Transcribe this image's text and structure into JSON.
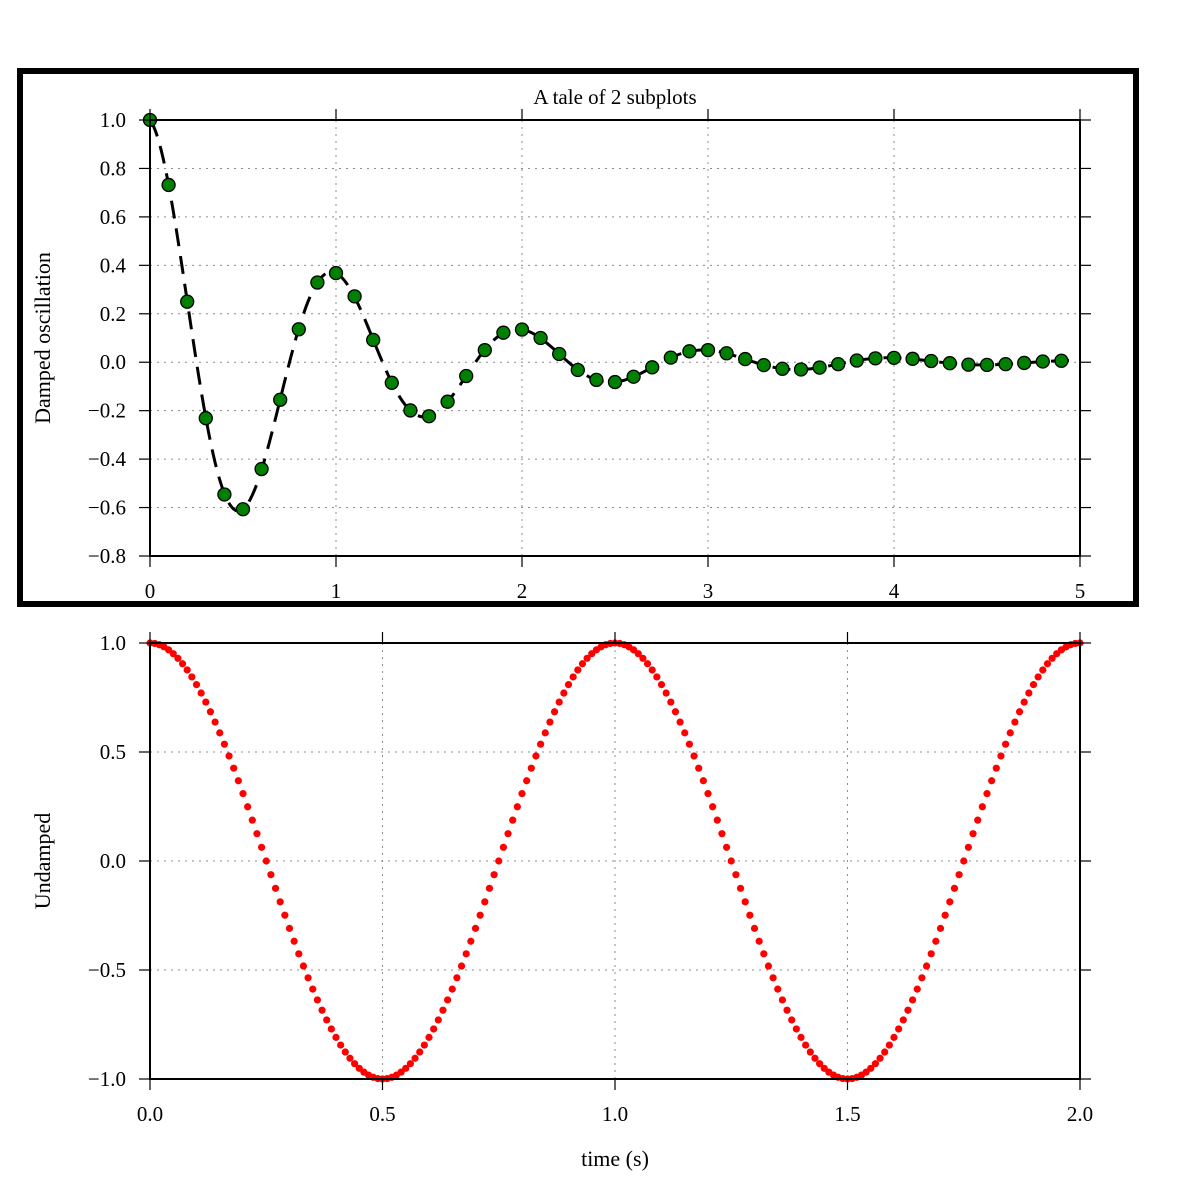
{
  "chart_data": [
    {
      "type": "line",
      "title": "A tale of 2 subplots",
      "xlabel": "",
      "ylabel": "Damped oscillation",
      "xlim": [
        0,
        5
      ],
      "ylim": [
        -0.8,
        1.0
      ],
      "xticks": [
        0,
        1,
        2,
        3,
        4,
        5
      ],
      "xtick_labels": [
        "0",
        "1",
        "2",
        "3",
        "4",
        "5"
      ],
      "yticks": [
        -0.8,
        -0.6,
        -0.4,
        -0.2,
        0.0,
        0.2,
        0.4,
        0.6,
        0.8,
        1.0
      ],
      "ytick_labels": [
        "−0.8",
        "−0.6",
        "−0.4",
        "−0.2",
        "0.0",
        "0.2",
        "0.4",
        "0.6",
        "0.8",
        "1.0"
      ],
      "grid": true,
      "highlighted": true,
      "series": [
        {
          "name": "damped",
          "style": "dashed line with circle markers",
          "line_color": "#000000",
          "marker_color": "#008000",
          "x": [
            0,
            0.1,
            0.2,
            0.3,
            0.4,
            0.5,
            0.6,
            0.7,
            0.8,
            0.9,
            1.0,
            1.1,
            1.2,
            1.3,
            1.4,
            1.5,
            1.6,
            1.7,
            1.8,
            1.9,
            2.0,
            2.1,
            2.2,
            2.3,
            2.4,
            2.5,
            2.6,
            2.7,
            2.8,
            2.9,
            3.0,
            3.1,
            3.2,
            3.3,
            3.4,
            3.5,
            3.6,
            3.7,
            3.8,
            3.9,
            4.0,
            4.1,
            4.2,
            4.3,
            4.4,
            4.5,
            4.6,
            4.7,
            4.8,
            4.9
          ],
          "y": [
            1.0,
            0.732,
            0.25,
            -0.231,
            -0.546,
            -0.607,
            -0.441,
            -0.155,
            0.136,
            0.329,
            0.368,
            0.272,
            0.092,
            -0.085,
            -0.199,
            -0.223,
            -0.163,
            -0.057,
            0.05,
            0.122,
            0.135,
            0.1,
            0.034,
            -0.032,
            -0.073,
            -0.082,
            -0.06,
            -0.021,
            0.019,
            0.045,
            0.05,
            0.037,
            0.013,
            -0.012,
            -0.027,
            -0.03,
            -0.022,
            -0.008,
            0.007,
            0.016,
            0.018,
            0.014,
            0.005,
            -0.004,
            -0.01,
            -0.011,
            -0.008,
            -0.003,
            0.003,
            0.006
          ]
        }
      ]
    },
    {
      "type": "scatter",
      "title": "",
      "xlabel": "time (s)",
      "ylabel": "Undamped",
      "xlim": [
        0.0,
        2.0
      ],
      "ylim": [
        -1.0,
        1.0
      ],
      "xticks": [
        0.0,
        0.5,
        1.0,
        1.5,
        2.0
      ],
      "xtick_labels": [
        "0.0",
        "0.5",
        "1.0",
        "1.5",
        "2.0"
      ],
      "yticks": [
        -1.0,
        -0.5,
        0.0,
        0.5,
        1.0
      ],
      "ytick_labels": [
        "−1.0",
        "−0.5",
        "0.0",
        "0.5",
        "1.0"
      ],
      "grid": true,
      "series": [
        {
          "name": "undamped",
          "style": "dotted markers",
          "marker_color": "#ff0000",
          "function": "cos(2*pi*t)",
          "x_start": 0.0,
          "x_end": 2.0,
          "x_step": 0.01
        }
      ]
    }
  ]
}
